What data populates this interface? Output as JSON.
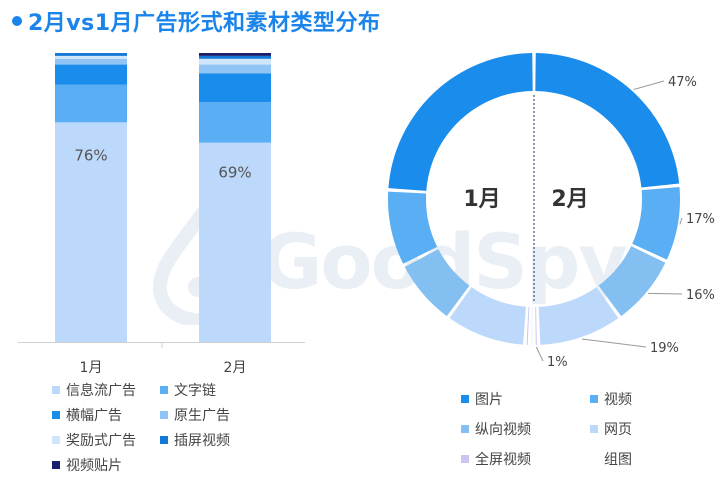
{
  "title": "2月vs1月广告形式和素材类型分布",
  "watermark": "GoodSpy",
  "colors": {
    "title": "#1b84ea"
  },
  "chart_data": [
    {
      "type": "bar",
      "stacked": true,
      "categories": [
        "1月",
        "2月"
      ],
      "series": [
        {
          "name": "信息流广告",
          "values": [
            76,
            69
          ],
          "color": "#bcd9fb"
        },
        {
          "name": "文字链",
          "values": [
            13,
            14
          ],
          "color": "#5aaef4"
        },
        {
          "name": "横幅广告",
          "values": [
            7,
            10
          ],
          "color": "#1a8ceb"
        },
        {
          "name": "原生广告",
          "values": [
            2,
            3
          ],
          "color": "#8fc4f4"
        },
        {
          "name": "奖励式广告",
          "values": [
            1,
            2
          ],
          "color": "#cfe5fb"
        },
        {
          "name": "插屏视频",
          "values": [
            1,
            1
          ],
          "color": "#1479d6"
        },
        {
          "name": "视频贴片",
          "values": [
            0,
            1
          ],
          "color": "#1a1f6b"
        }
      ],
      "data_labels": [
        {
          "category": "1月",
          "text": "76%"
        },
        {
          "category": "2月",
          "text": "69%"
        }
      ],
      "ylim": [
        0,
        100
      ],
      "legend": "bottom"
    },
    {
      "type": "pie",
      "donut": true,
      "center_labels": [
        "1月",
        "2月"
      ],
      "series": [
        {
          "name": "2月",
          "side": "right",
          "slices": [
            {
              "label": "图片",
              "value": 47,
              "color": "#1a8ceb",
              "data_label": "47%"
            },
            {
              "label": "视频",
              "value": 17,
              "color": "#5aaef4",
              "data_label": "17%"
            },
            {
              "label": "纵向视频",
              "value": 16,
              "color": "#84bff2",
              "data_label": "16%"
            },
            {
              "label": "网页",
              "value": 19,
              "color": "#bcd9fb",
              "data_label": "19%"
            },
            {
              "label": "全屏视频",
              "value": 1,
              "color": "#c9c6f2",
              "data_label": "1%"
            }
          ]
        },
        {
          "name": "1月",
          "side": "left",
          "slices": [
            {
              "label": "图片",
              "value": 48,
              "color": "#1a8ceb"
            },
            {
              "label": "视频",
              "value": 17,
              "color": "#5aaef4"
            },
            {
              "label": "纵向视频",
              "value": 15,
              "color": "#84bff2"
            },
            {
              "label": "网页",
              "value": 18,
              "color": "#bcd9fb"
            },
            {
              "label": "全屏视频",
              "value": 1,
              "color": "#c9c6f2"
            },
            {
              "label": "组图",
              "value": 1,
              "color": "#eef3fa"
            }
          ]
        }
      ],
      "legend": [
        {
          "label": "图片",
          "color": "#1a8ceb"
        },
        {
          "label": "视频",
          "color": "#5aaef4"
        },
        {
          "label": "纵向视频",
          "color": "#84bff2"
        },
        {
          "label": "网页",
          "color": "#bcd9fb"
        },
        {
          "label": "全屏视频",
          "color": "#c9c6f2"
        },
        {
          "label": "组图",
          "color": "#ffffff"
        }
      ]
    }
  ]
}
